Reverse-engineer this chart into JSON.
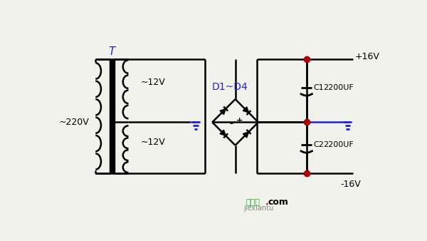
{
  "bg_color": "#f2f2ec",
  "line_color": "#000000",
  "blue_color": "#2222cc",
  "red_color": "#aa0000",
  "green_color": "#22aa22",
  "label_220": "~220V",
  "label_T": "T",
  "label_12v_top": "~12V",
  "label_12v_bot": "~12V",
  "label_D": "D1~D4",
  "label_p16": "+16V",
  "label_m16": "-16V",
  "label_C1": "C1",
  "label_C2": "C2",
  "label_uf1": "2200UF",
  "label_uf2": "2200UF",
  "watermark_cn": "接线图",
  "watermark_dot": ".",
  "watermark_com": "com",
  "watermark_py": "jiexiantu"
}
